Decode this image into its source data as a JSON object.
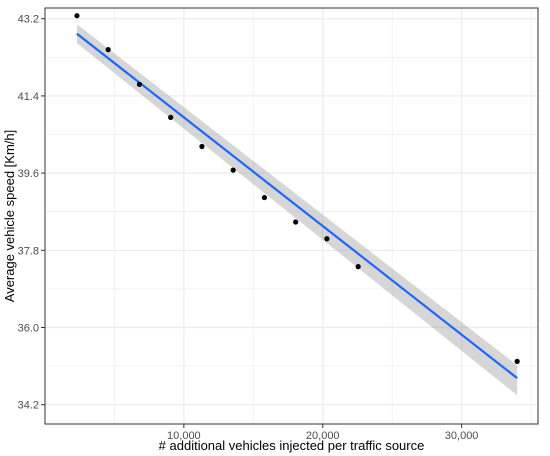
{
  "chart_data": {
    "type": "scatter",
    "xlabel": "# additional vehicles injected per traffic source",
    "ylabel": "Average vehicle speed [Km/h]",
    "xlim": [
      0,
      35500
    ],
    "ylim": [
      33.75,
      43.45
    ],
    "x_ticks": [
      10000,
      20000,
      30000
    ],
    "x_tick_labels": [
      "10,000",
      "20,000",
      "30,000"
    ],
    "y_ticks": [
      34.2,
      36.0,
      37.8,
      39.6,
      41.4,
      43.2
    ],
    "y_tick_labels": [
      "34.2",
      "36.0",
      "37.8",
      "39.6",
      "41.4",
      "43.2"
    ],
    "grid": true,
    "points": [
      {
        "x": 2300,
        "y": 43.27
      },
      {
        "x": 4550,
        "y": 42.48
      },
      {
        "x": 6800,
        "y": 41.67
      },
      {
        "x": 9050,
        "y": 40.9
      },
      {
        "x": 11300,
        "y": 40.22
      },
      {
        "x": 13550,
        "y": 39.67
      },
      {
        "x": 15800,
        "y": 39.03
      },
      {
        "x": 18050,
        "y": 38.46
      },
      {
        "x": 20300,
        "y": 38.07
      },
      {
        "x": 22550,
        "y": 37.42
      },
      {
        "x": 34000,
        "y": 35.21
      }
    ],
    "fit": {
      "x": [
        2300,
        34000
      ],
      "y": [
        42.85,
        34.82
      ],
      "ci_upper": [
        43.07,
        35.12
      ],
      "ci_lower": [
        42.63,
        34.42
      ]
    },
    "colors": {
      "point": "#000000",
      "fit_line": "#1a66ff",
      "ci_band": "#999999",
      "grid": "#ebebeb",
      "panel_border": "#333333"
    }
  }
}
